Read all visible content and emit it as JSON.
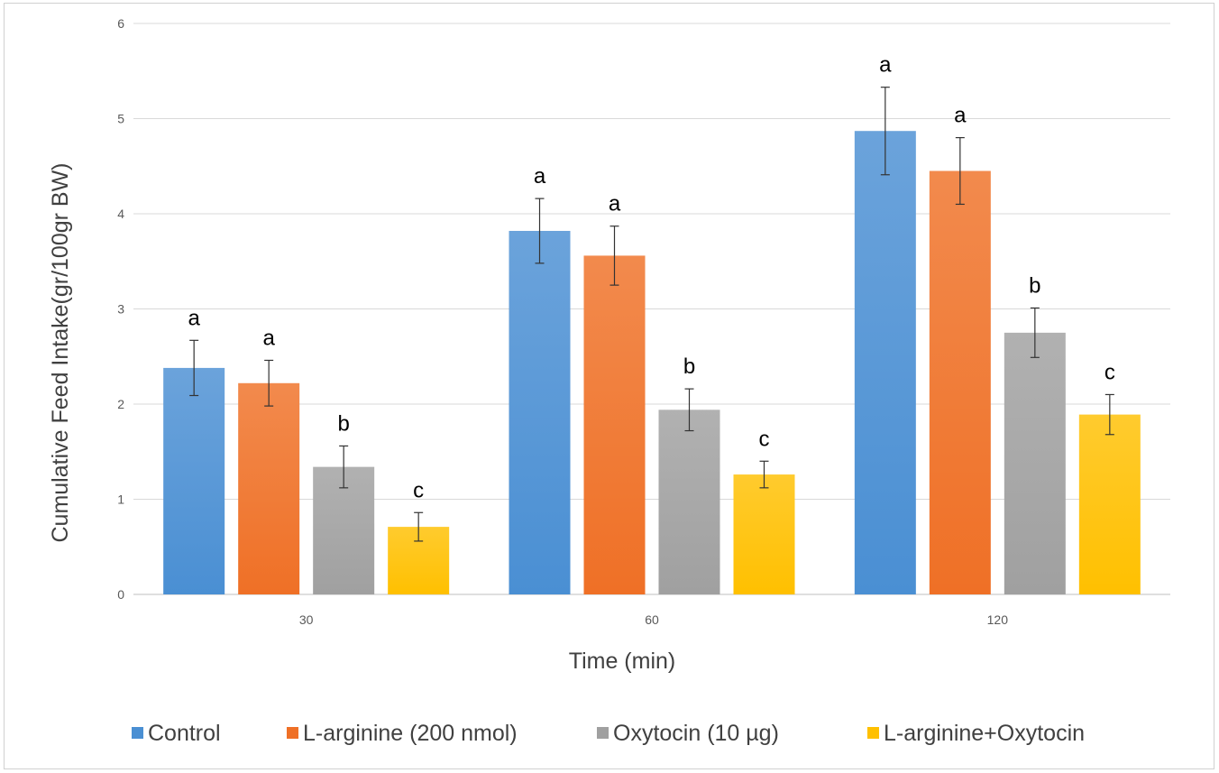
{
  "chart_data": {
    "type": "bar",
    "title": "",
    "xlabel": "Time (min)",
    "ylabel": "Cumulative Feed Intake(gr/100gr BW)",
    "ylim": [
      0,
      6
    ],
    "yticks": [
      "0",
      "1",
      "2",
      "3",
      "4",
      "5",
      "6"
    ],
    "categories": [
      "30",
      "60",
      "120"
    ],
    "grid": true,
    "legend_position": "bottom",
    "series": [
      {
        "name": "Control",
        "color": "#4a8fd3",
        "values": [
          2.38,
          3.82,
          4.87
        ],
        "errors": [
          0.29,
          0.34,
          0.46
        ],
        "labels": [
          "a",
          "a",
          "a"
        ]
      },
      {
        "name": "L-arginine (200 nmol)",
        "color": "#ef7026",
        "values": [
          2.22,
          3.56,
          4.45
        ],
        "errors": [
          0.24,
          0.31,
          0.35
        ],
        "labels": [
          "a",
          "a",
          "a"
        ]
      },
      {
        "name": "Oxytocin (10 µg)",
        "color": "#a0a0a0",
        "values": [
          1.34,
          1.94,
          2.75
        ],
        "errors": [
          0.22,
          0.22,
          0.26
        ],
        "labels": [
          "b",
          "b",
          "b"
        ]
      },
      {
        "name": "L-arginine+Oxytocin",
        "color": "#ffc000",
        "values": [
          0.71,
          1.26,
          1.89
        ],
        "errors": [
          0.15,
          0.14,
          0.21
        ],
        "labels": [
          "c",
          "c",
          "c"
        ]
      }
    ]
  }
}
